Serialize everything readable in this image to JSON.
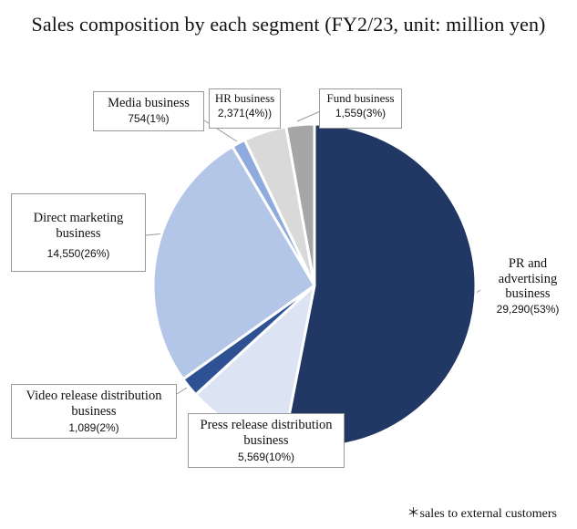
{
  "chart_data": {
    "type": "pie",
    "title": "Sales composition by each segment (FY2/23, unit: million yen)",
    "footnote": "＊sales to external customers",
    "slices": [
      {
        "name": "PR and advertising business",
        "name_lines": [
          "PR and",
          "advertising",
          "business"
        ],
        "value": 29290,
        "label": "29,290(53%)",
        "color": "#213864"
      },
      {
        "name": "Press release distribution business",
        "name_lines": [
          "Press release distribution",
          "business"
        ],
        "value": 5569,
        "label": "5,569(10%)",
        "color": "#dce4f4"
      },
      {
        "name": "Video release distribution business",
        "name_lines": [
          "Video release distribution",
          "business"
        ],
        "value": 1089,
        "label": "1,089(2%)",
        "color": "#2e5193"
      },
      {
        "name": "Direct marketing business",
        "name_lines": [
          "Direct marketing",
          "business"
        ],
        "value": 14550,
        "label": "14,550(26%)",
        "color": "#b3c6e7"
      },
      {
        "name": "Media business",
        "name_lines": [
          "Media business"
        ],
        "value": 754,
        "label": "754(1%)",
        "color": "#8faadc"
      },
      {
        "name": "HR business",
        "name_lines": [
          "HR business"
        ],
        "value": 2371,
        "label": "2,371(4%))",
        "color": "#d9d9d9"
      },
      {
        "name": "Fund business",
        "name_lines": [
          "Fund business"
        ],
        "value": 1559,
        "label": "1,559(3%)",
        "color": "#a6a6a6"
      }
    ]
  }
}
